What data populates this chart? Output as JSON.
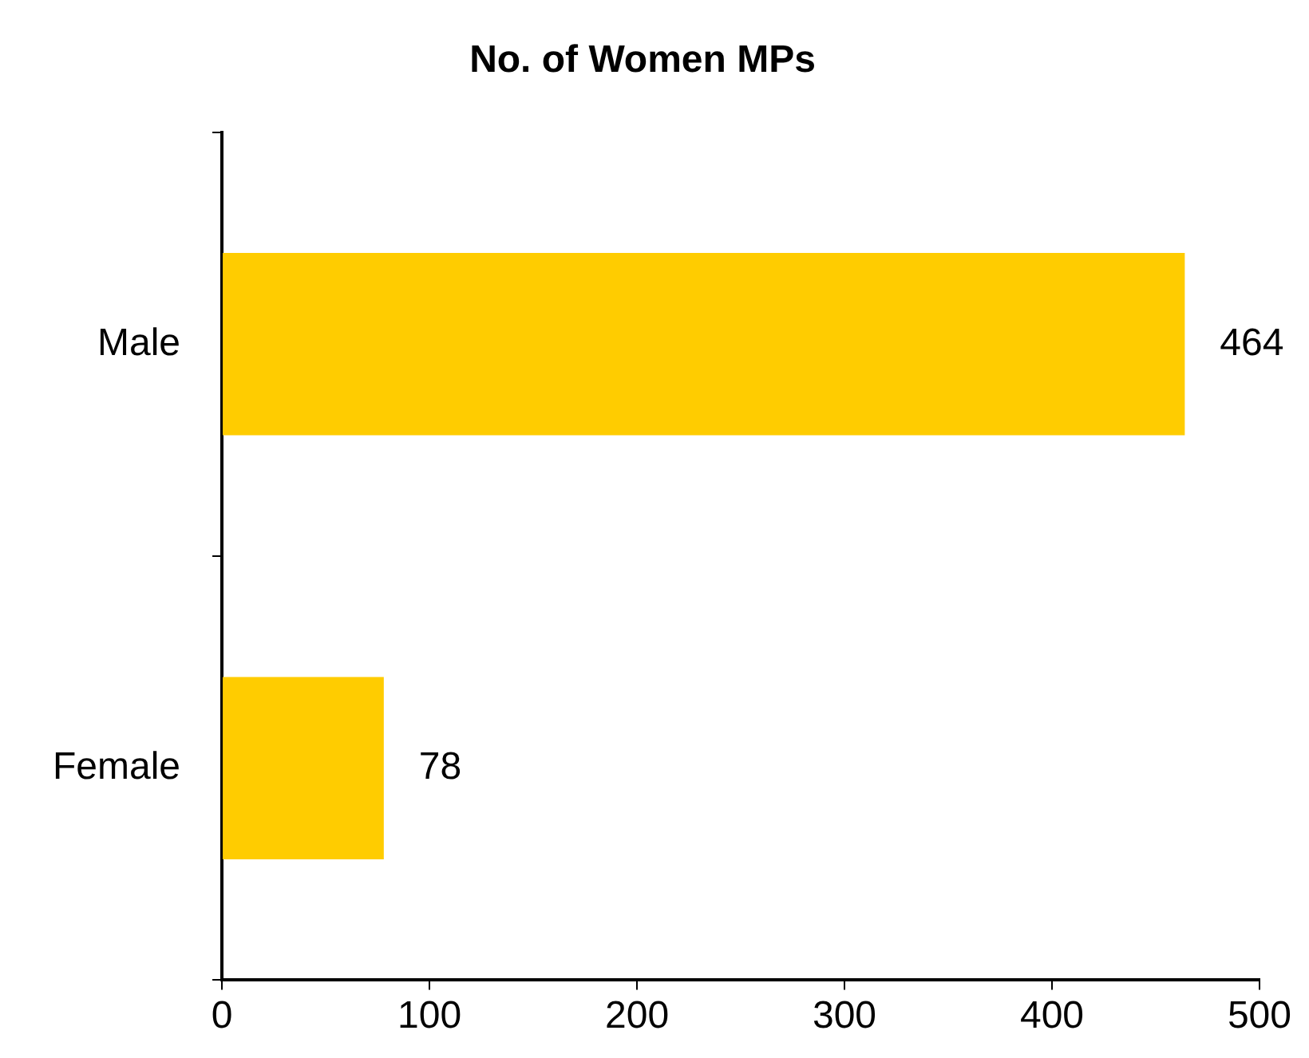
{
  "chart_data": {
    "type": "bar",
    "orientation": "horizontal",
    "title": "No. of Women MPs",
    "categories": [
      "Male",
      "Female"
    ],
    "values": [
      464,
      78
    ],
    "color": "#ffcc00",
    "xlim": [
      0,
      500
    ],
    "xticks": [
      0,
      100,
      200,
      300,
      400,
      500
    ],
    "grid": false,
    "data_labels": true
  }
}
